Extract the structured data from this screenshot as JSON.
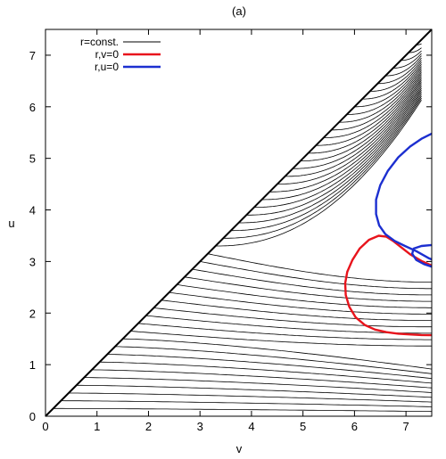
{
  "chart_data": {
    "type": "line",
    "title": "(a)",
    "xlabel": "v",
    "ylabel": "u",
    "xlim": [
      0,
      7.5
    ],
    "ylim": [
      0,
      7.5
    ],
    "x_ticks": [
      "0",
      "1",
      "2",
      "3",
      "4",
      "5",
      "6",
      "7"
    ],
    "y_ticks": [
      "0",
      "1",
      "2",
      "3",
      "4",
      "5",
      "6",
      "7"
    ],
    "grid": false,
    "legend_position": "top-left",
    "legend": [
      {
        "label": "r=const.",
        "color": "#000000"
      },
      {
        "label": "r,v=0",
        "color": "#e8141c"
      },
      {
        "label": "r,u=0",
        "color": "#1c2fd0"
      }
    ],
    "series": [
      {
        "name": "r,v=0",
        "color": "#e8141c",
        "x": [
          7.5,
          7.3,
          7.1,
          6.85,
          6.62,
          6.4,
          6.2,
          6.02,
          5.9,
          5.83,
          5.82,
          5.86,
          5.96,
          6.1,
          6.28,
          6.47,
          6.62,
          6.75,
          6.9,
          7.08,
          7.3,
          7.5
        ],
        "y": [
          1.57,
          1.575,
          1.585,
          1.6,
          1.63,
          1.68,
          1.77,
          1.92,
          2.12,
          2.35,
          2.58,
          2.8,
          3.03,
          3.25,
          3.42,
          3.5,
          3.48,
          3.4,
          3.28,
          3.14,
          3.01,
          2.92
        ]
      },
      {
        "name": "r,u=0",
        "color": "#1c2fd0",
        "x": [
          7.5,
          7.3,
          7.08,
          6.85,
          6.65,
          6.5,
          6.42,
          6.42,
          6.48,
          6.6,
          6.78,
          6.98,
          7.2,
          7.45,
          7.5
        ],
        "y": [
          5.48,
          5.38,
          5.23,
          5.02,
          4.76,
          4.48,
          4.2,
          3.92,
          3.7,
          3.53,
          3.4,
          3.3,
          3.2,
          3.06,
          3.04
        ]
      },
      {
        "name": "r,u=0 (lower branch)",
        "color": "#1c2fd0",
        "x": [
          7.5,
          7.35,
          7.2,
          7.12,
          7.15,
          7.3,
          7.5
        ],
        "y": [
          2.9,
          2.95,
          3.03,
          3.15,
          3.25,
          3.3,
          3.32
        ]
      },
      {
        "name": "diagonal boundary",
        "color": "#000000",
        "x": [
          0,
          7.5
        ],
        "y": [
          0,
          7.5
        ]
      }
    ],
    "contour_family": {
      "description_of_marks": "r = const. level curves",
      "u_start_values": [
        0.15,
        0.3,
        0.45,
        0.6,
        0.75,
        0.9,
        1.05,
        1.2,
        1.35,
        1.5,
        1.65,
        1.8,
        1.95,
        2.1,
        2.25,
        2.4,
        2.55,
        2.7,
        2.85,
        3.0,
        3.15,
        3.3,
        3.45,
        3.6,
        3.75,
        3.9,
        4.05,
        4.2,
        4.35,
        4.5,
        4.65,
        4.8,
        4.95,
        5.1,
        5.25,
        5.4,
        5.55,
        5.7,
        5.85,
        6.0,
        6.15,
        6.3,
        6.45,
        6.6,
        6.75,
        6.9,
        7.05,
        7.2
      ],
      "u_saddle": 3.2,
      "v_saddle": 7.5,
      "v_horizon_band": [
        6.9,
        7.3
      ]
    }
  }
}
